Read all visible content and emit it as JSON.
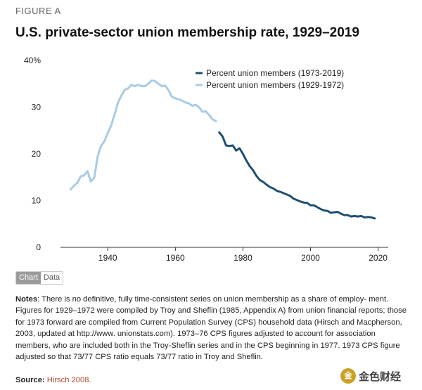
{
  "figure_label": "FIGURE A",
  "tabs": {
    "chart": "Chart",
    "data": "Data"
  },
  "notes": {
    "label": "Notes",
    "text": ": There is no definitive, fully time-consistent series on union membership as a share of employ- ment. Figures for 1929–1972 were compiled by Troy and Sheflin (1985, Appendix A) from union financial reports; those for 1973 forward are compiled from Current Population Survey (CPS) household data (Hirsch and Macpherson, 2003, updated at http://www. unionstats.com). 1973–76 CPS figures adjusted to account for association members, who are included both in the Troy-Sheflin series and in the CPS beginning in 1977. 1973 CPS figure adjusted so that 73/77 CPS ratio equals 73/77 ratio in Troy and Sheflin."
  },
  "source": {
    "label": "Source:",
    "link_text": "Hirsch 2008."
  },
  "watermark": {
    "logo": "金",
    "text": "金色财经"
  },
  "colors": {
    "series_recent": "#1f5070",
    "series_early": "#a8cce4",
    "axis": "#333333",
    "text": "#222222"
  },
  "chart_data": {
    "type": "line",
    "title": "U.S. private-sector union membership rate, 1929–2019",
    "xlabel": "",
    "ylabel": "",
    "xlim": [
      1926,
      2023
    ],
    "ylim": [
      0,
      40
    ],
    "x_ticks": [
      1940,
      1960,
      1980,
      2000,
      2020
    ],
    "y_ticks": [
      0,
      10,
      20,
      30,
      40
    ],
    "y_tick_labels": [
      "0",
      "10",
      "20",
      "30",
      "40%"
    ],
    "legend_position": "top-right",
    "series": [
      {
        "name": "Percent union members (1973-2019)",
        "color": "#1f5070",
        "x": [
          1973,
          1974,
          1975,
          1976,
          1977,
          1978,
          1979,
          1980,
          1981,
          1982,
          1983,
          1984,
          1985,
          1986,
          1987,
          1988,
          1989,
          1990,
          1991,
          1992,
          1993,
          1994,
          1995,
          1996,
          1997,
          1998,
          1999,
          2000,
          2001,
          2002,
          2003,
          2004,
          2005,
          2006,
          2007,
          2008,
          2009,
          2010,
          2011,
          2012,
          2013,
          2014,
          2015,
          2016,
          2017,
          2018,
          2019
        ],
        "values": [
          24.6,
          23.7,
          21.8,
          21.7,
          21.8,
          20.7,
          21.2,
          20.0,
          18.6,
          17.4,
          16.5,
          15.3,
          14.4,
          14.0,
          13.4,
          12.9,
          12.6,
          12.1,
          11.9,
          11.6,
          11.3,
          11.0,
          10.4,
          10.1,
          9.8,
          9.6,
          9.5,
          9.0,
          9.0,
          8.6,
          8.2,
          7.9,
          7.8,
          7.4,
          7.5,
          7.6,
          7.2,
          6.9,
          6.9,
          6.6,
          6.7,
          6.6,
          6.7,
          6.4,
          6.5,
          6.4,
          6.2
        ]
      },
      {
        "name": "Percent union members (1929-1972)",
        "color": "#a8cce4",
        "x": [
          1929,
          1930,
          1931,
          1932,
          1933,
          1934,
          1935,
          1936,
          1937,
          1938,
          1939,
          1940,
          1941,
          1942,
          1943,
          1944,
          1945,
          1946,
          1947,
          1948,
          1949,
          1950,
          1951,
          1952,
          1953,
          1954,
          1955,
          1956,
          1957,
          1958,
          1959,
          1960,
          1961,
          1962,
          1963,
          1964,
          1965,
          1966,
          1967,
          1968,
          1969,
          1970,
          1971,
          1972
        ],
        "values": [
          12.4,
          13.2,
          13.8,
          15.2,
          15.4,
          16.3,
          14.1,
          14.9,
          19.4,
          21.7,
          22.7,
          24.5,
          26.1,
          28.4,
          31.0,
          32.4,
          33.7,
          34.0,
          34.8,
          34.5,
          34.8,
          34.5,
          34.5,
          35.0,
          35.7,
          35.6,
          35.0,
          34.5,
          34.6,
          33.6,
          32.2,
          31.9,
          31.7,
          31.4,
          31.0,
          30.8,
          30.3,
          30.5,
          30.0,
          29.0,
          29.1,
          28.3,
          27.4,
          27.0
        ]
      }
    ]
  }
}
